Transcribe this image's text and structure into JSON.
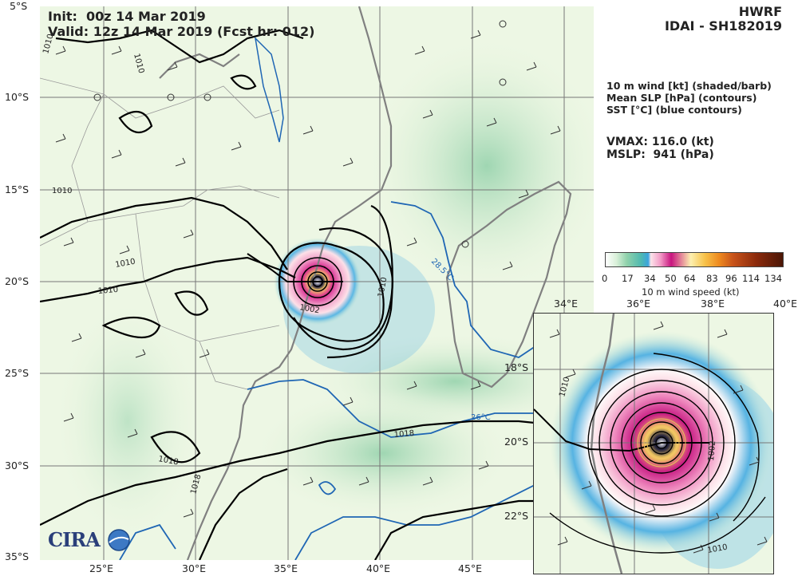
{
  "header": {
    "init_line": "Init:  00z 14 Mar 2019",
    "valid_line": "Valid: 12z 14 Mar 2019 (Fcst hr: 012)",
    "model": "HWRF",
    "storm": "IDAI - SH182019"
  },
  "legend": {
    "line1": "10 m wind [kt] (shaded/barb)",
    "line2": "Mean SLP [hPa] (contours)",
    "line3": "SST [°C] (blue contours)",
    "vmax_line": "VMAX: 116.0 (kt)",
    "mslp_line": "MSLP:  941 (hPa)"
  },
  "colorbar": {
    "label": "10 m wind speed (kt)",
    "ticks": [
      "0",
      "17",
      "34",
      "50",
      "64",
      "83",
      "96",
      "114",
      "134"
    ]
  },
  "main_map": {
    "lat_labels": [
      "5°S",
      "10°S",
      "15°S",
      "20°S",
      "25°S",
      "30°S",
      "35°S"
    ],
    "lon_labels": [
      "25°E",
      "30°E",
      "35°E",
      "40°E",
      "45°E"
    ],
    "contour_labels": [
      "1010",
      "1010",
      "1010",
      "1010",
      "1010",
      "1002",
      "1010",
      "1018",
      "1018",
      "1018",
      "28.5°C",
      "26°C",
      "1010"
    ]
  },
  "inset_map": {
    "lon_labels": [
      "34°E",
      "36°E",
      "38°E",
      "40°E"
    ],
    "lat_labels": [
      "18°S",
      "20°S",
      "22°S"
    ],
    "contour_labels": [
      "1010",
      "1002",
      "1010",
      "1010"
    ]
  },
  "logo": {
    "text": "CIRA"
  },
  "colors": {
    "land_bg": "#e9f5df",
    "wind_light": "#b7e2c4",
    "wind_34": "#4ab0e0",
    "wind_50": "#e5399e",
    "wind_64": "#f5d06a",
    "sst_contour": "#1f66b4",
    "slp_contour": "#000000",
    "coast": "#888888"
  }
}
